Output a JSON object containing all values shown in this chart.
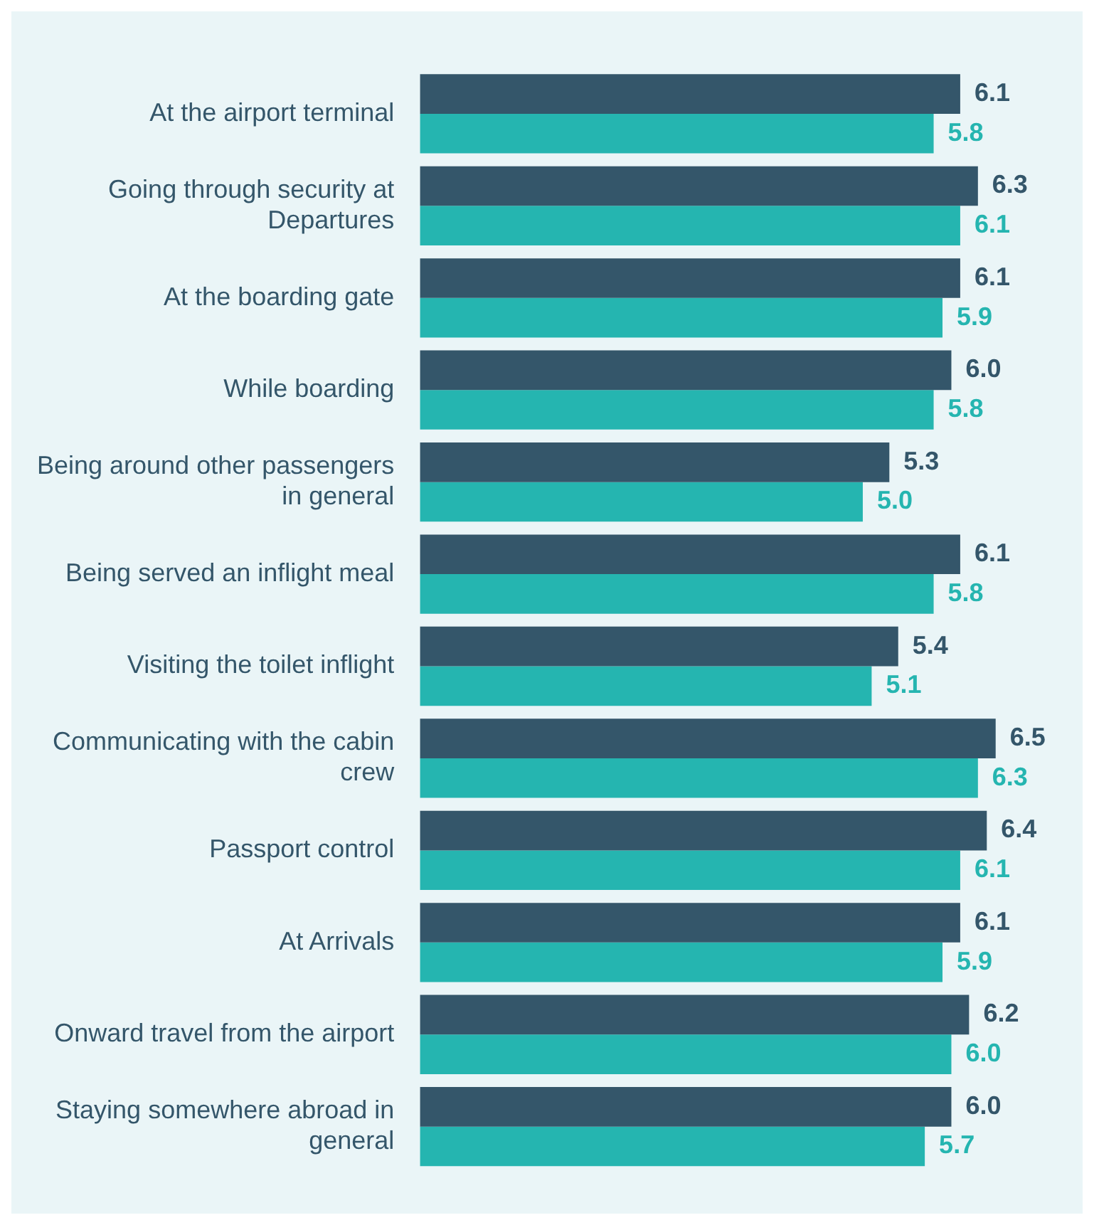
{
  "chart_data": {
    "type": "bar",
    "orientation": "horizontal",
    "categories": [
      "At the airport terminal",
      "Going through security at Departures",
      "At the boarding gate",
      "While boarding",
      "Being around other passengers in general",
      "Being served an inflight meal",
      "Visiting the toilet inflight",
      "Communicating with the cabin crew",
      "Passport control",
      "At Arrivals",
      "Onward travel from the airport",
      "Staying somewhere abroad in general"
    ],
    "series": [
      {
        "color": "#34566a",
        "values": [
          6.1,
          6.3,
          6.1,
          6.0,
          5.3,
          6.1,
          5.4,
          6.5,
          6.4,
          6.1,
          6.2,
          6.0
        ],
        "value_labels": [
          "6.1",
          "6.3",
          "6.1",
          "6.0",
          "5.3",
          "6.1",
          "5.4",
          "6.5",
          "6.4",
          "6.1",
          "6.2",
          "6.0"
        ]
      },
      {
        "color": "#25b5b0",
        "values": [
          5.8,
          6.1,
          5.9,
          5.8,
          5.0,
          5.8,
          5.1,
          6.3,
          6.1,
          5.9,
          6.0,
          5.7
        ],
        "value_labels": [
          "5.8",
          "6.1",
          "5.9",
          "5.8",
          "5.0",
          "5.8",
          "5.1",
          "6.3",
          "6.1",
          "5.9",
          "6.0",
          "5.7"
        ]
      }
    ],
    "legend": false,
    "grid": false,
    "tick_labels": "y"
  }
}
